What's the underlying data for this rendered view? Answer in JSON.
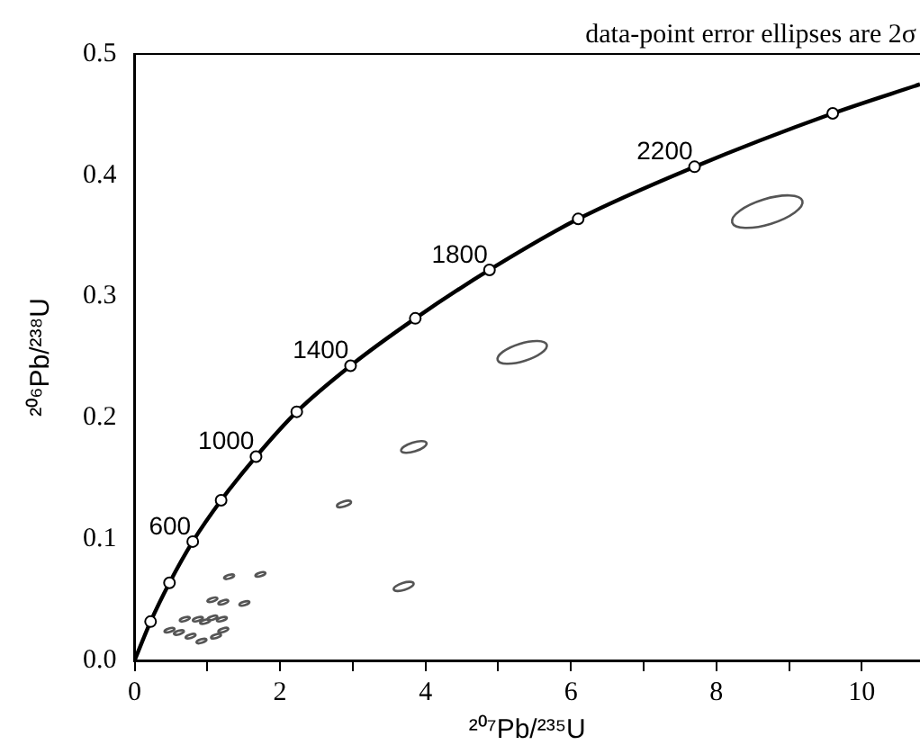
{
  "chart_data": {
    "type": "scatter",
    "xlabel": "²⁰⁷Pb/²³⁵U",
    "ylabel": "²⁰⁶Pb/²³⁸U",
    "xlim": [
      0,
      10.8
    ],
    "xticks": [
      0,
      {
        "value": 1,
        "label": null
      },
      2,
      {
        "value": 3,
        "label": null
      },
      4,
      {
        "value": 5,
        "label": null
      },
      6,
      {
        "value": 7,
        "label": null
      },
      8,
      {
        "value": 9,
        "label": null
      },
      10
    ],
    "ylim": [
      0,
      0.5
    ],
    "yticks": [
      {
        "value": 0,
        "label": "0.0"
      },
      {
        "value": 0.1,
        "label": "0.1"
      },
      {
        "value": 0.2,
        "label": "0.2"
      },
      {
        "value": 0.3,
        "label": "0.3"
      },
      {
        "value": 0.4,
        "label": "0.4"
      },
      {
        "value": 0.5,
        "label": "0.5"
      }
    ],
    "grid": false,
    "legend": false,
    "series": [
      {
        "type": "line",
        "color": "#000000",
        "marker": "circle",
        "x": [
          0,
          0.22,
          0.48,
          0.8,
          1.19,
          1.67,
          2.23,
          2.97,
          3.86,
          4.88,
          6.1,
          7.7,
          9.6,
          10.8
        ],
        "values": [
          0,
          0.032,
          0.064,
          0.098,
          0.132,
          0.168,
          0.205,
          0.243,
          0.282,
          0.322,
          0.364,
          0.407,
          0.451,
          0.475
        ]
      },
      {
        "type": "bubble",
        "color": "#555555",
        "x": [
          8.7,
          5.33,
          3.84,
          2.88,
          3.7,
          1.3,
          1.73,
          1.07,
          1.22,
          1.51,
          0.69,
          0.87,
          0.97,
          1.07,
          1.2,
          0.48,
          0.61,
          0.77,
          0.92,
          1.12,
          1.22
        ],
        "values": [
          0.37,
          0.254,
          0.176,
          0.129,
          0.061,
          0.069,
          0.071,
          0.05,
          0.048,
          0.047,
          0.034,
          0.034,
          0.032,
          0.035,
          0.034,
          0.025,
          0.023,
          0.02,
          0.016,
          0.02,
          0.025
        ],
        "sizes": [
          1,
          0.49,
          0.13,
          0.04,
          0.08,
          0.02,
          0.02,
          0.02,
          0.02,
          0.02,
          0.02,
          0.02,
          0.02,
          0.02,
          0.02,
          0.02,
          0.02,
          0.02,
          0.02,
          0.02,
          0.02
        ]
      }
    ],
    "annotations": [
      {
        "text": "600",
        "x": 0.8,
        "y": 0.098
      },
      {
        "text": "1000",
        "x": 1.67,
        "y": 0.168
      },
      {
        "text": "1400",
        "x": 2.97,
        "y": 0.243
      },
      {
        "text": "1800",
        "x": 4.88,
        "y": 0.322
      },
      {
        "text": "2200",
        "x": 7.7,
        "y": 0.407
      },
      "data-point error ellipses are 2σ"
    ]
  }
}
